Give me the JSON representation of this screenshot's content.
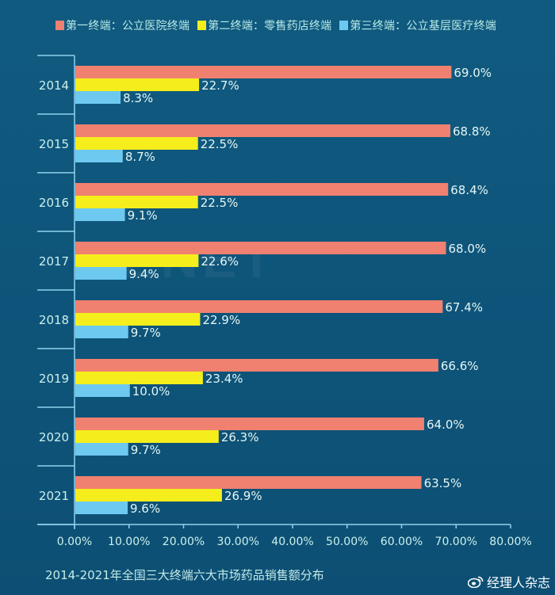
{
  "legend": [
    {
      "label": "第一终端：公立医院终端",
      "color": "#f08070"
    },
    {
      "label": "第二终端：零售药店终端",
      "color": "#f5ee1c"
    },
    {
      "label": "第三终端：公立基层医疗终端",
      "color": "#6ec9f0"
    }
  ],
  "footer": {
    "title": "2014-2021年全国三大终端六大市场药品销售额分布",
    "source": "经理人杂志"
  },
  "background_watermark": "MENET",
  "chart_data": {
    "type": "bar",
    "orientation": "horizontal",
    "title": "2014-2021年全国三大终端六大市场药品销售额分布",
    "xlabel": "",
    "ylabel": "",
    "categories": [
      "2014",
      "2015",
      "2016",
      "2017",
      "2018",
      "2019",
      "2020",
      "2021"
    ],
    "series": [
      {
        "name": "第一终端：公立医院终端",
        "color": "#f08070",
        "values": [
          69.0,
          68.8,
          68.4,
          68.0,
          67.4,
          66.6,
          64.0,
          63.5
        ],
        "labels": [
          "69.0%",
          "68.8%",
          "68.4%",
          "68.0%",
          "67.4%",
          "66.6%",
          "64.0%",
          "63.5%"
        ]
      },
      {
        "name": "第二终端：零售药店终端",
        "color": "#f5ee1c",
        "values": [
          22.7,
          22.5,
          22.5,
          22.6,
          22.9,
          23.4,
          26.3,
          26.9
        ],
        "labels": [
          "22.7%",
          "22.5%",
          "22.5%",
          "22.6%",
          "22.9%",
          "23.4%",
          "26.3%",
          "26.9%"
        ]
      },
      {
        "name": "第三终端：公立基层医疗终端",
        "color": "#6ec9f0",
        "values": [
          8.3,
          8.7,
          9.1,
          9.4,
          9.7,
          10.0,
          9.7,
          9.6
        ],
        "labels": [
          "8.3%",
          "8.7%",
          "9.1%",
          "9.4%",
          "9.7%",
          "10.0%",
          "9.7%",
          "9.6%"
        ]
      }
    ],
    "xlim": [
      0,
      80
    ],
    "xticks": [
      0,
      10,
      20,
      30,
      40,
      50,
      60,
      70,
      80
    ],
    "xtick_labels": [
      "0.00%",
      "10.00%",
      "20.00%",
      "30.00%",
      "40.00%",
      "50.00%",
      "60.00%",
      "70.00%",
      "80.00%"
    ],
    "grid": false,
    "legend_position": "top"
  }
}
